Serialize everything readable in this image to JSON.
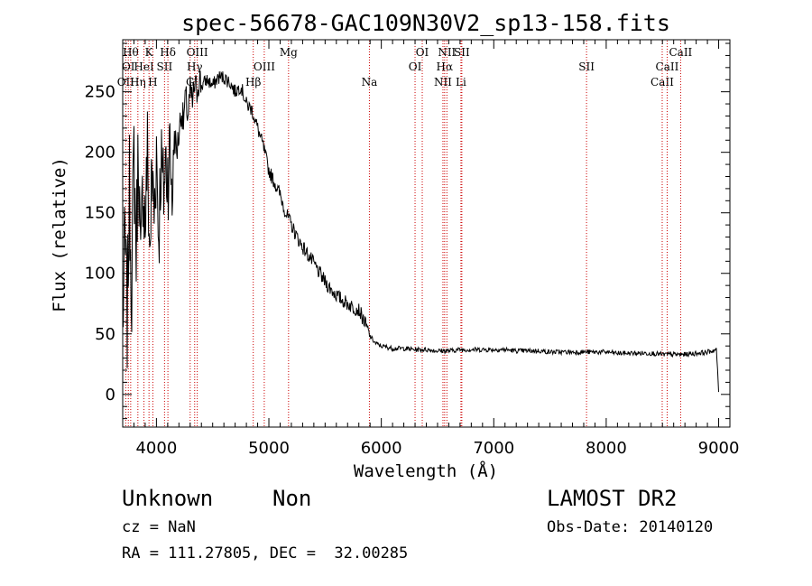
{
  "chart_data": {
    "type": "line",
    "title": "spec-56678-GAC109N30V2_sp13-158.fits",
    "xlabel": "Wavelength (Å)",
    "ylabel": "Flux (relative)",
    "xlim": [
      3700,
      9100
    ],
    "ylim": [
      -27,
      293
    ],
    "xticks": [
      4000,
      5000,
      6000,
      7000,
      8000,
      9000
    ],
    "yticks": [
      0,
      50,
      100,
      150,
      200,
      250
    ],
    "grid": false,
    "series": [
      {
        "x": [
          3700,
          3720,
          3740,
          3760,
          3780,
          3800,
          3820,
          3840,
          3860,
          3880,
          3900,
          3920,
          3940,
          3960,
          3980,
          4000,
          4020,
          4040,
          4060,
          4080,
          4100,
          4120,
          4140,
          4160,
          4180,
          4200,
          4220,
          4240,
          4260,
          4280,
          4300,
          4320,
          4340,
          4360,
          4380,
          4400,
          4450,
          4500,
          4550,
          4600,
          4650,
          4700,
          4750,
          4800,
          4850,
          4900,
          4950,
          5000,
          5050,
          5100,
          5150,
          5200,
          5250,
          5300,
          5350,
          5400,
          5450,
          5500,
          5550,
          5600,
          5650,
          5700,
          5750,
          5800,
          5850,
          5900,
          5950,
          6000,
          6100,
          6200,
          6300,
          6400,
          6500,
          6600,
          6700,
          6800,
          6900,
          7000,
          7100,
          7200,
          7300,
          7400,
          7500,
          7600,
          7700,
          7800,
          7900,
          8000,
          8100,
          8200,
          8300,
          8400,
          8500,
          8600,
          8700,
          8800,
          8900,
          8980,
          9000
        ],
        "values": [
          55,
          130,
          60,
          170,
          90,
          200,
          120,
          210,
          95,
          180,
          140,
          200,
          115,
          180,
          150,
          205,
          130,
          195,
          165,
          190,
          185,
          200,
          170,
          215,
          200,
          215,
          235,
          225,
          245,
          230,
          250,
          240,
          255,
          250,
          262,
          255,
          260,
          255,
          262,
          262,
          258,
          250,
          255,
          240,
          235,
          220,
          205,
          185,
          175,
          165,
          150,
          140,
          130,
          122,
          115,
          108,
          100,
          93,
          87,
          82,
          78,
          75,
          72,
          70,
          60,
          48,
          42,
          40,
          38,
          38,
          37,
          37,
          36,
          36,
          37,
          37,
          37,
          37,
          37,
          36,
          36,
          36,
          35,
          35,
          35,
          35,
          35,
          35,
          34,
          34,
          34,
          34,
          33,
          33,
          33,
          34,
          35,
          37,
          2
        ]
      }
    ],
    "lines": [
      {
        "name": "OII",
        "x": 3727,
        "row": 3
      },
      {
        "name": "OI",
        "x": 3750,
        "row": 2
      },
      {
        "name": "Hθ",
        "x": 3771,
        "row": 1
      },
      {
        "name": "Hη",
        "x": 3835,
        "row": 3
      },
      {
        "name": "HeI",
        "x": 3889,
        "row": 2
      },
      {
        "name": "K",
        "x": 3934,
        "row": 1
      },
      {
        "name": "H",
        "x": 3968,
        "row": 3
      },
      {
        "name": "SII",
        "x": 4072,
        "row": 2
      },
      {
        "name": "Hδ",
        "x": 4102,
        "row": 1
      },
      {
        "name": "G",
        "x": 4300,
        "row": 3
      },
      {
        "name": "Hγ",
        "x": 4340,
        "row": 2
      },
      {
        "name": "OIII",
        "x": 4363,
        "row": 1
      },
      {
        "name": "Hβ",
        "x": 4861,
        "row": 3
      },
      {
        "name": "OIII",
        "x": 4959,
        "row": 2
      },
      {
        "name": "Mg",
        "x": 5175,
        "row": 1
      },
      {
        "name": "Na",
        "x": 5894,
        "row": 3
      },
      {
        "name": "OI",
        "x": 6300,
        "row": 2
      },
      {
        "name": "OI",
        "x": 6364,
        "row": 1
      },
      {
        "name": "NII",
        "x": 6548,
        "row": 3
      },
      {
        "name": "Hα",
        "x": 6563,
        "row": 2
      },
      {
        "name": "NII",
        "x": 6583,
        "row": 1
      },
      {
        "name": "Li",
        "x": 6708,
        "row": 3
      },
      {
        "name": "SII",
        "x": 6716,
        "row": 1
      },
      {
        "name": "SII",
        "x": 7825,
        "row": 2
      },
      {
        "name": "CaII",
        "x": 8498,
        "row": 3
      },
      {
        "name": "CaII",
        "x": 8542,
        "row": 2
      },
      {
        "name": "CaII",
        "x": 8662,
        "row": 1
      }
    ],
    "colors": {
      "spectrum": "#000000",
      "lines": "#cc0000"
    }
  },
  "info": {
    "class_name": "Unknown",
    "subclass": "Non",
    "survey": "LAMOST DR2",
    "cz": "cz = NaN",
    "obs_date": "Obs-Date: 20140120",
    "coords": "RA = 111.27805, DEC =  32.00285"
  }
}
